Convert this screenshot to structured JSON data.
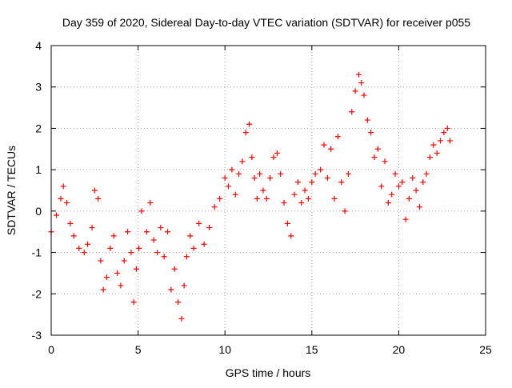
{
  "chart_data": {
    "type": "scatter",
    "title": "Day 359 of 2020, Sidereal Day-to-day VTEC variation (SDTVAR) for receiver p055",
    "xlabel": "GPS time / hours",
    "ylabel": "SDTVAR / TECUs",
    "xlim": [
      0,
      25
    ],
    "ylim": [
      -3,
      4
    ],
    "x_ticks": [
      0,
      5,
      10,
      15,
      20,
      25
    ],
    "y_ticks": [
      -3,
      -2,
      -1,
      0,
      1,
      2,
      3,
      4
    ],
    "grid": true,
    "marker": "+",
    "color": "#ff0000",
    "series": [
      {
        "name": "SDTVAR",
        "x": [
          0.0,
          0.3,
          0.55,
          0.7,
          0.9,
          1.1,
          1.3,
          1.6,
          1.9,
          2.1,
          2.35,
          2.5,
          2.7,
          2.85,
          3.0,
          3.2,
          3.4,
          3.6,
          3.8,
          4.0,
          4.2,
          4.4,
          4.6,
          4.75,
          4.9,
          5.05,
          5.2,
          5.5,
          5.7,
          5.9,
          6.1,
          6.3,
          6.5,
          6.7,
          6.9,
          7.1,
          7.3,
          7.5,
          7.65,
          7.8,
          8.0,
          8.2,
          8.5,
          8.8,
          9.1,
          9.4,
          9.7,
          10.0,
          10.2,
          10.4,
          10.6,
          10.8,
          11.0,
          11.2,
          11.4,
          11.55,
          11.7,
          11.85,
          12.0,
          12.2,
          12.4,
          12.6,
          12.8,
          13.0,
          13.2,
          13.4,
          13.6,
          13.8,
          14.0,
          14.2,
          14.4,
          14.6,
          14.8,
          15.0,
          15.2,
          15.5,
          15.7,
          15.9,
          16.1,
          16.3,
          16.5,
          16.7,
          16.9,
          17.1,
          17.3,
          17.5,
          17.7,
          17.85,
          18.0,
          18.2,
          18.4,
          18.6,
          18.8,
          19.0,
          19.2,
          19.4,
          19.6,
          19.8,
          20.0,
          20.2,
          20.4,
          20.6,
          20.8,
          21.0,
          21.2,
          21.4,
          21.6,
          21.8,
          22.0,
          22.2,
          22.4,
          22.6,
          22.8,
          22.95
        ],
        "y": [
          -0.5,
          -0.1,
          0.3,
          0.6,
          0.2,
          -0.3,
          -0.6,
          -0.9,
          -1.0,
          -0.8,
          -0.4,
          0.5,
          0.3,
          -1.2,
          -1.9,
          -1.6,
          -0.9,
          -0.6,
          -1.5,
          -1.8,
          -1.2,
          -0.5,
          -1.0,
          -2.2,
          -1.4,
          -0.9,
          0.0,
          -0.5,
          0.2,
          -0.7,
          -1.0,
          -0.4,
          -1.1,
          -0.5,
          -1.9,
          -1.4,
          -2.2,
          -2.6,
          -1.8,
          -1.1,
          -0.6,
          -0.9,
          -0.3,
          -0.8,
          -0.4,
          0.1,
          0.3,
          0.8,
          0.6,
          1.0,
          0.4,
          0.9,
          1.2,
          1.9,
          2.1,
          1.3,
          0.8,
          0.3,
          0.9,
          0.5,
          0.3,
          0.8,
          1.3,
          1.4,
          0.9,
          0.2,
          -0.3,
          -0.6,
          0.4,
          0.7,
          0.2,
          0.5,
          0.3,
          0.7,
          0.9,
          1.0,
          1.6,
          0.8,
          1.5,
          0.3,
          1.8,
          0.7,
          0.0,
          0.9,
          2.4,
          2.9,
          3.3,
          3.1,
          2.8,
          2.2,
          1.9,
          1.3,
          1.5,
          0.6,
          1.2,
          0.2,
          0.4,
          0.9,
          0.6,
          0.7,
          -0.2,
          0.3,
          0.8,
          0.5,
          0.1,
          0.7,
          0.9,
          1.3,
          1.6,
          1.4,
          1.7,
          1.9,
          2.0,
          1.7
        ]
      }
    ]
  }
}
